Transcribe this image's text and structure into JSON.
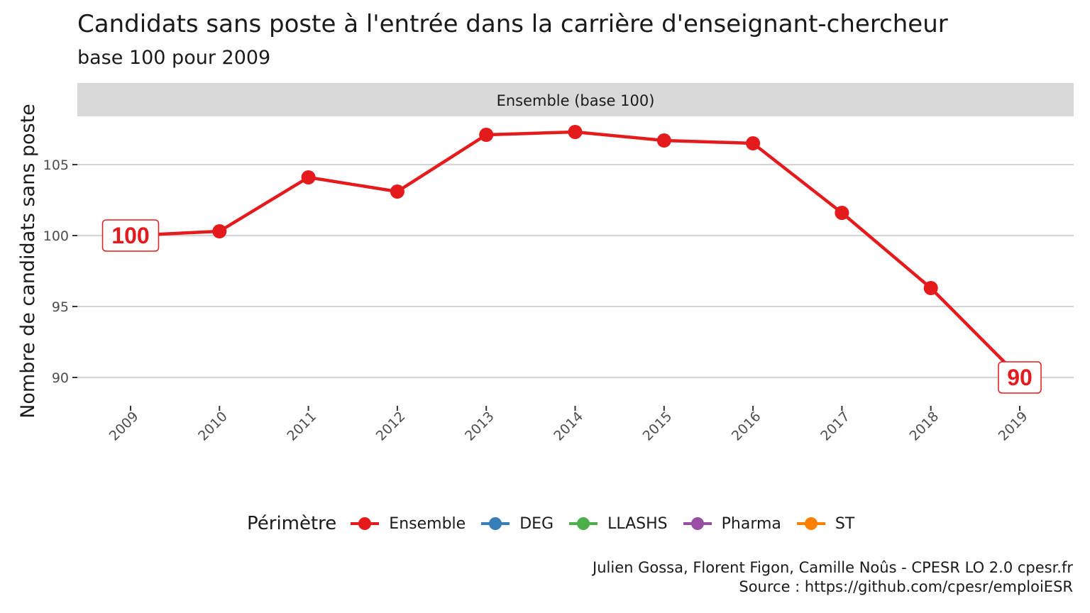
{
  "title": "Candidats sans poste à l'entrée dans la carrière d'enseignant-chercheur",
  "subtitle": "base 100 pour 2009",
  "caption": {
    "line1": "Julien Gossa, Florent Figon, Camille Noûs - CPESR LO 2.0 cpesr.fr",
    "line2": "Source : https://github.com/cpesr/emploiESR"
  },
  "legend": {
    "title": "Périmètre",
    "items": [
      {
        "label": "Ensemble",
        "color": "#e41a1c"
      },
      {
        "label": "DEG",
        "color": "#377eb8"
      },
      {
        "label": "LLASHS",
        "color": "#4daf4a"
      },
      {
        "label": "Pharma",
        "color": "#984ea3"
      },
      {
        "label": "ST",
        "color": "#ff7f00"
      }
    ]
  },
  "chart_data": {
    "type": "line",
    "facet_label": "Ensemble (base 100)",
    "xlabel": "",
    "ylabel": "Nombre de candidats sans poste",
    "x": [
      "2009",
      "2010",
      "2011",
      "2012",
      "2013",
      "2014",
      "2015",
      "2016",
      "2017",
      "2018",
      "2019"
    ],
    "yticks": [
      90,
      95,
      100,
      105
    ],
    "ylim": [
      88.2,
      108.4
    ],
    "grid": true,
    "legend_position": "bottom",
    "series": [
      {
        "name": "Ensemble",
        "color": "#e41a1c",
        "values": [
          100,
          100.3,
          104.1,
          103.1,
          107.1,
          107.3,
          106.7,
          106.5,
          101.6,
          96.3,
          90
        ]
      }
    ],
    "annotations": [
      {
        "x": "2009",
        "y": 100,
        "text": "100"
      },
      {
        "x": "2019",
        "y": 90,
        "text": "90"
      }
    ]
  }
}
